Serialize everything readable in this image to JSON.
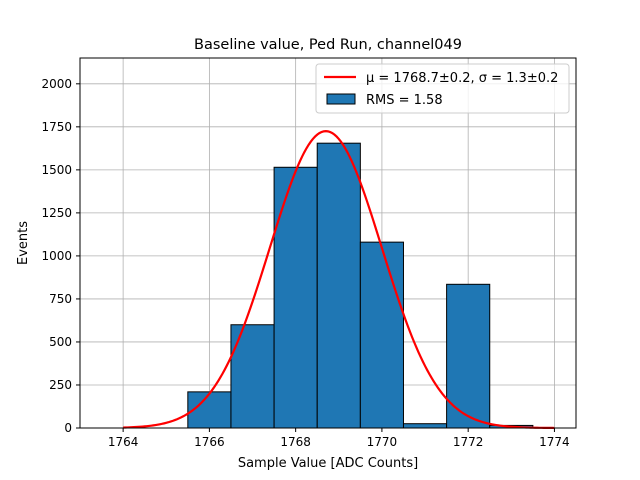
{
  "chart_data": {
    "type": "bar",
    "title": "Baseline value, Ped Run, channel049",
    "xlabel": "Sample Value [ADC Counts]",
    "ylabel": "Events",
    "xlim": [
      1763.0,
      1774.5
    ],
    "ylim": [
      0,
      2150
    ],
    "xticks": [
      1764,
      1766,
      1768,
      1770,
      1772,
      1774
    ],
    "yticks": [
      0,
      250,
      500,
      750,
      1000,
      1250,
      1500,
      1750,
      2000
    ],
    "grid": true,
    "legend_position": "top-right",
    "histogram": {
      "name": "RMS = 1.58",
      "bin_edges": [
        1763.5,
        1764.5,
        1765.5,
        1766.5,
        1767.5,
        1768.5,
        1769.5,
        1770.5,
        1771.5,
        1772.5,
        1773.5
      ],
      "counts": [
        0,
        0,
        210,
        600,
        1515,
        1655,
        1080,
        25,
        835,
        15
      ],
      "color": "#1f77b4",
      "edge_color": "#000000"
    },
    "fit": {
      "label": "μ = 1768.7±0.2, σ = 1.3±0.2",
      "mu": 1768.7,
      "sigma": 1.3,
      "amplitude": 1725,
      "x_range": [
        1764,
        1774
      ],
      "color": "#ff0000"
    }
  }
}
